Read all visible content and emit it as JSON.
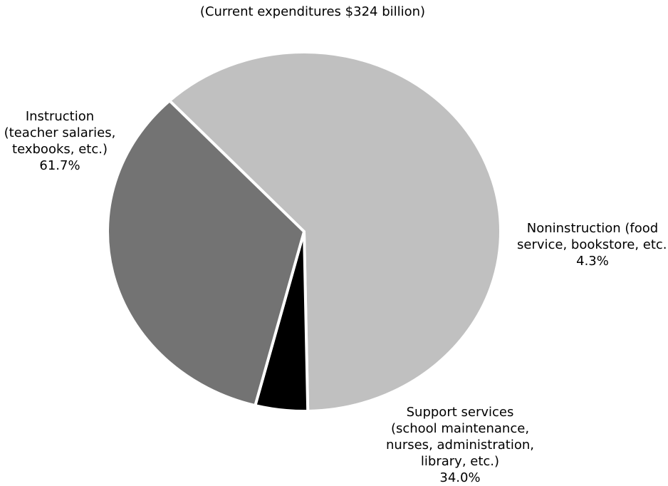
{
  "chart_data": {
    "type": "pie",
    "subtitle": "(Current expenditures $324 billion)",
    "slices": [
      {
        "lines": [
          "Instruction",
          "(teacher salaries,",
          "texbooks, etc.)"
        ],
        "value_label": "61.7%",
        "value": 61.7,
        "color": "#c0c0c0"
      },
      {
        "lines": [
          "Noninstruction (food",
          "service, bookstore, etc.)"
        ],
        "value_label": "4.3%",
        "value": 4.3,
        "color": "#000000"
      },
      {
        "lines": [
          "Support services",
          "(school maintenance,",
          "nurses, administration,",
          "library, etc.)"
        ],
        "value_label": "34.0%",
        "value": 34.0,
        "color": "#737373"
      }
    ]
  }
}
